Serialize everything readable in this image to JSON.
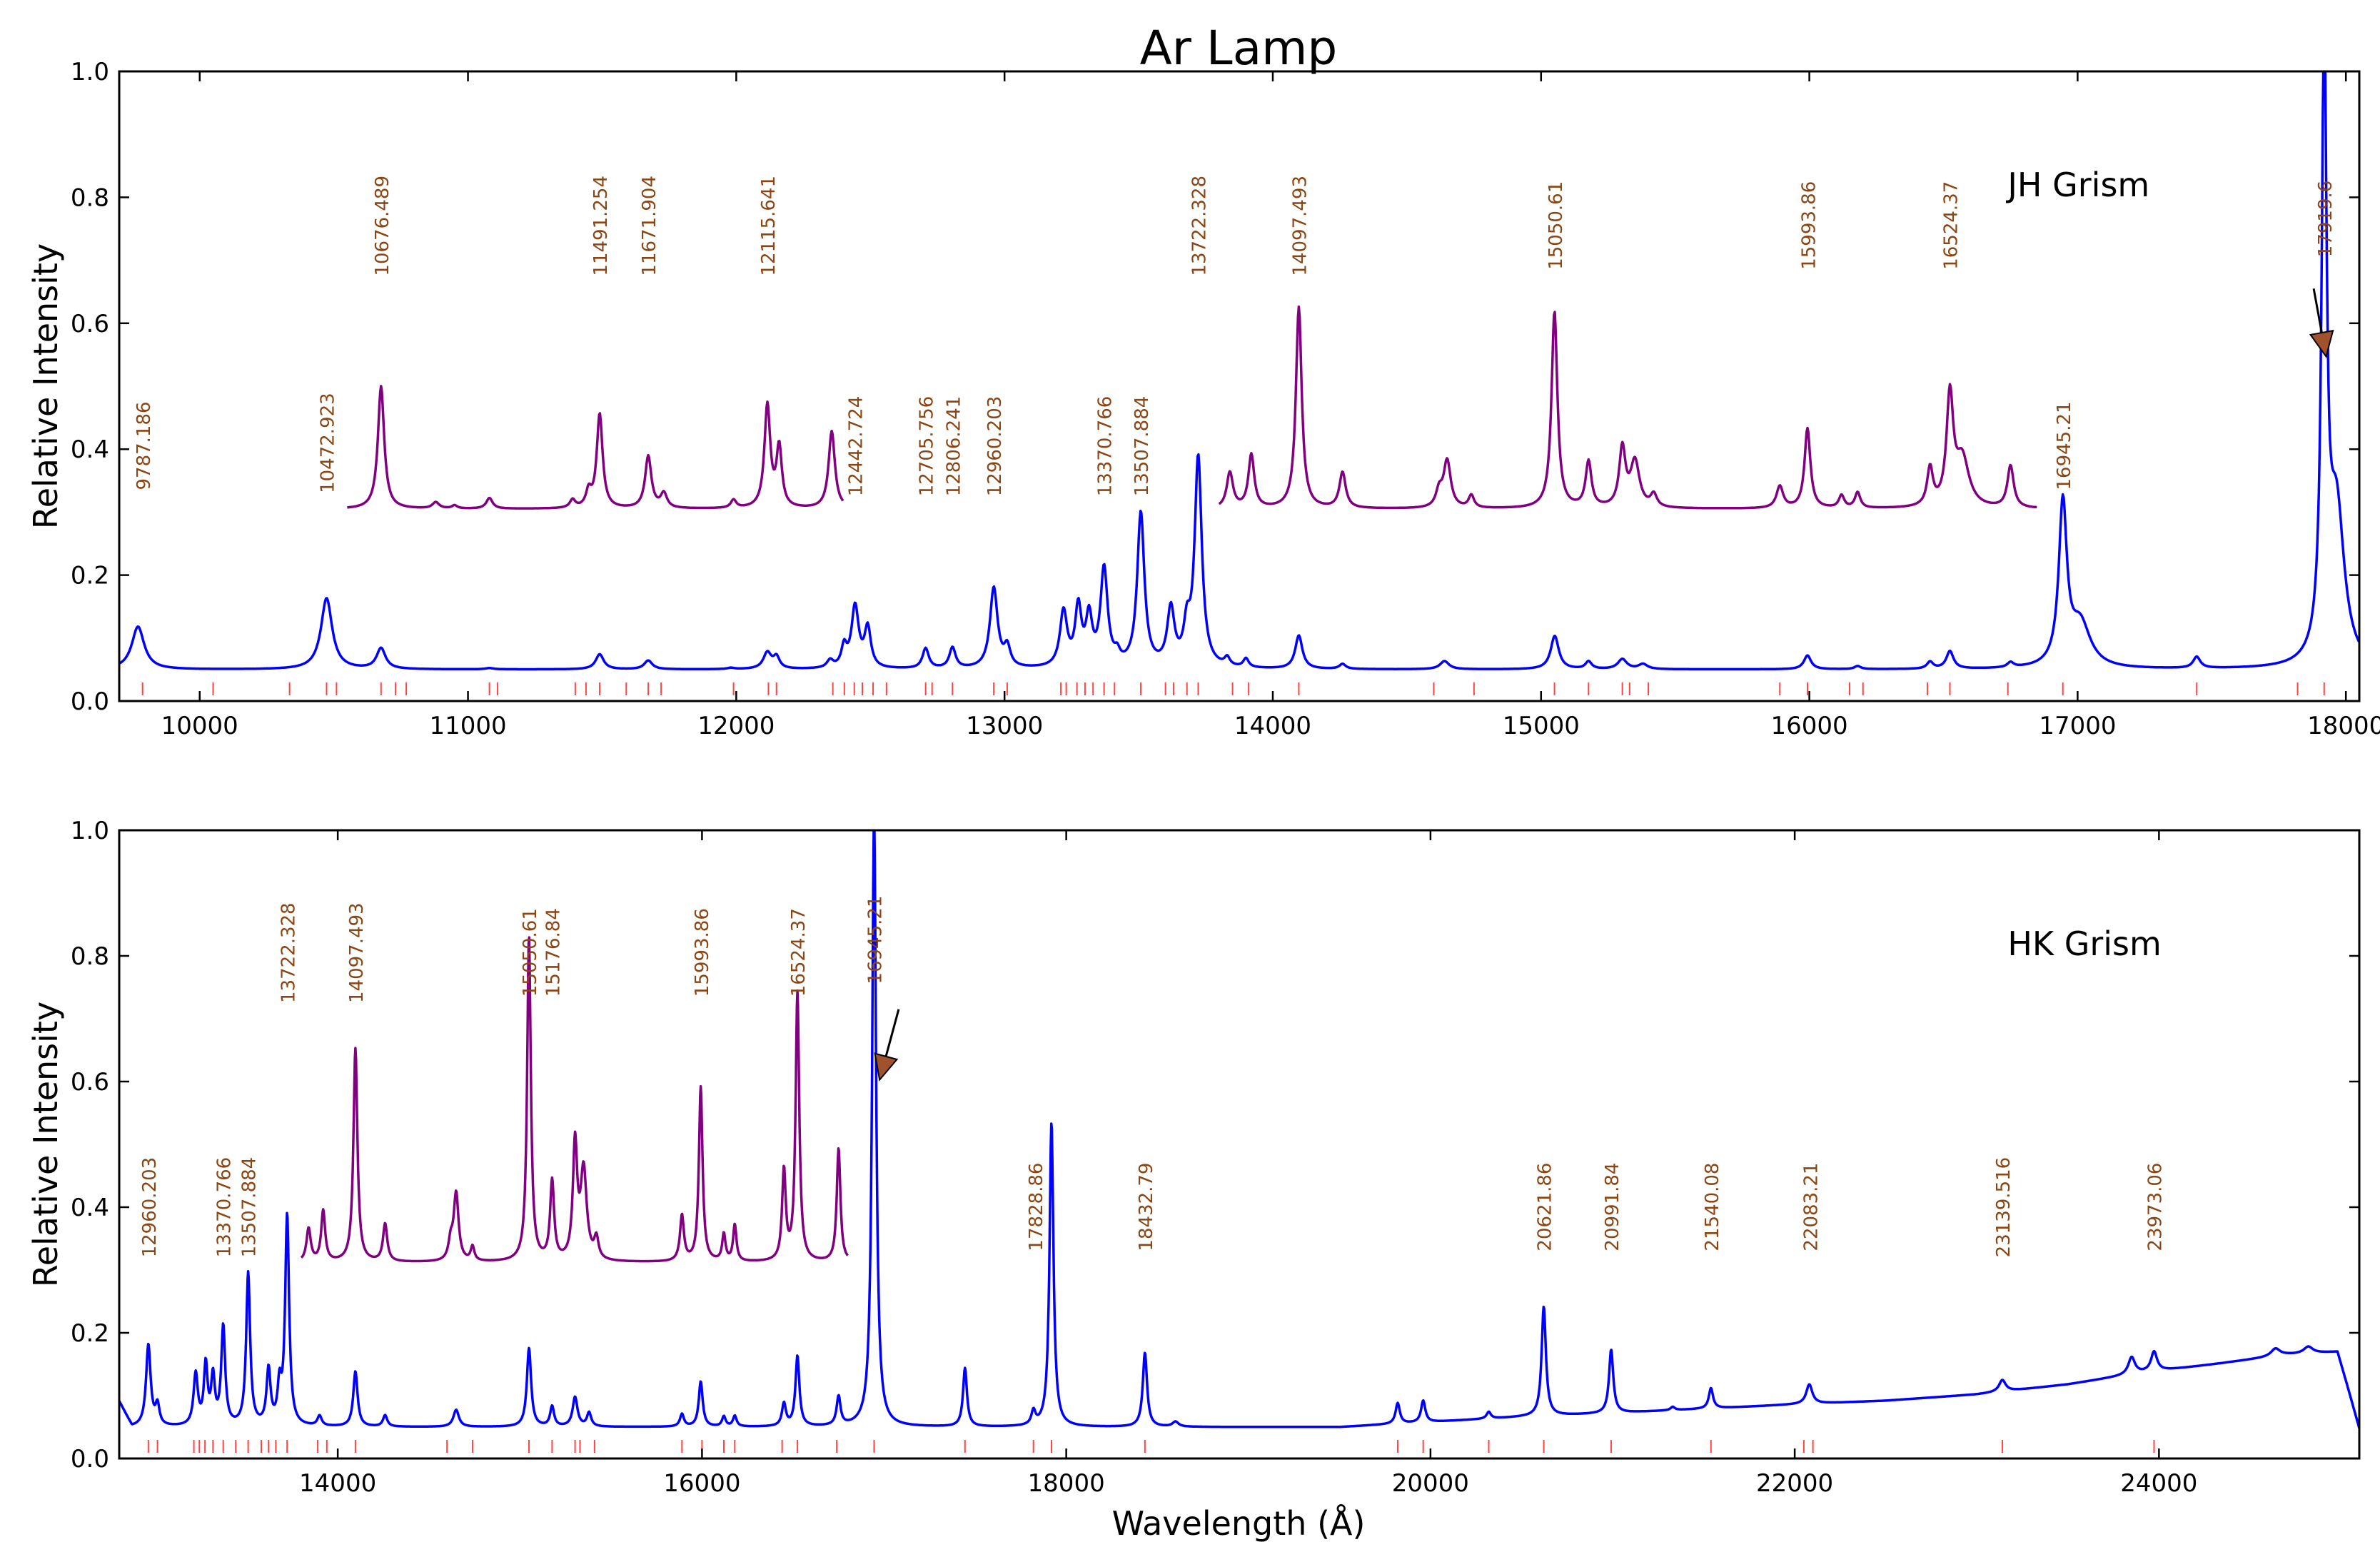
{
  "figure": {
    "title": "Ar Lamp",
    "xlabel": "Wavelength (Å)",
    "ylabel": "Relative Intensity"
  },
  "colors": {
    "main": "#0000ff",
    "inset": "#800080",
    "label": "#8b4513",
    "tick": "#ff4444",
    "arrow": "#a0522d",
    "axis": "#000000"
  },
  "chart_data": [
    {
      "type": "line",
      "name": "JH Grism",
      "xlim": [
        9700,
        18050
      ],
      "ylim": [
        0,
        1.0
      ],
      "xticks": [
        10000,
        11000,
        12000,
        13000,
        14000,
        15000,
        16000,
        17000,
        18000
      ],
      "yticks": [
        0.0,
        0.2,
        0.4,
        0.6,
        0.8,
        1.0
      ],
      "baseline": 0.05,
      "main_peaks": [
        [
          9770,
          0.118,
          28
        ],
        [
          10473,
          0.163,
          25
        ],
        [
          10676,
          0.083,
          20
        ],
        [
          11080,
          0.052,
          18
        ],
        [
          11491,
          0.074,
          18
        ],
        [
          11672,
          0.064,
          18
        ],
        [
          11980,
          0.052,
          15
        ],
        [
          12116,
          0.076,
          18
        ],
        [
          12150,
          0.068,
          14
        ],
        [
          12350,
          0.062,
          14
        ],
        [
          12402,
          0.082,
          12
        ],
        [
          12443,
          0.148,
          16
        ],
        [
          12490,
          0.113,
          14
        ],
        [
          12706,
          0.082,
          14
        ],
        [
          12806,
          0.083,
          14
        ],
        [
          12960,
          0.178,
          17
        ],
        [
          13010,
          0.081,
          14
        ],
        [
          13220,
          0.138,
          16
        ],
        [
          13275,
          0.142,
          14
        ],
        [
          13315,
          0.125,
          14
        ],
        [
          13371,
          0.205,
          16
        ],
        [
          13420,
          0.065,
          12
        ],
        [
          13508,
          0.295,
          16
        ],
        [
          13620,
          0.14,
          16
        ],
        [
          13680,
          0.105,
          14
        ],
        [
          13722,
          0.383,
          16
        ],
        [
          13830,
          0.063,
          12
        ],
        [
          13900,
          0.064,
          12
        ],
        [
          14097,
          0.103,
          16
        ],
        [
          14260,
          0.058,
          14
        ],
        [
          14640,
          0.063,
          20
        ],
        [
          15051,
          0.103,
          18
        ],
        [
          15177,
          0.062,
          14
        ],
        [
          15303,
          0.066,
          20
        ],
        [
          15380,
          0.058,
          20
        ],
        [
          15993,
          0.072,
          16
        ],
        [
          16180,
          0.055,
          14
        ],
        [
          16450,
          0.061,
          14
        ],
        [
          16524,
          0.078,
          16
        ],
        [
          16750,
          0.058,
          14
        ],
        [
          16945,
          0.305,
          18
        ],
        [
          17010,
          0.12,
          45
        ],
        [
          17444,
          0.068,
          16
        ],
        [
          17919,
          1.02,
          11
        ],
        [
          17965,
          0.3,
          35
        ]
      ],
      "inset": {
        "segments": [
          [
            10550,
            12400
          ],
          [
            13800,
            16850
          ]
        ],
        "baseline": 0.305,
        "peaks": [
          [
            10676,
            0.5,
            14
          ],
          [
            10880,
            0.315,
            15
          ],
          [
            10950,
            0.31,
            12
          ],
          [
            11080,
            0.322,
            14
          ],
          [
            11390,
            0.318,
            12
          ],
          [
            11450,
            0.33,
            12
          ],
          [
            11491,
            0.455,
            13
          ],
          [
            11672,
            0.388,
            14
          ],
          [
            11730,
            0.328,
            14
          ],
          [
            11990,
            0.318,
            12
          ],
          [
            12116,
            0.468,
            13
          ],
          [
            12160,
            0.4,
            12
          ],
          [
            12356,
            0.428,
            14
          ],
          [
            13840,
            0.362,
            14
          ],
          [
            13920,
            0.39,
            13
          ],
          [
            14097,
            0.625,
            13
          ],
          [
            14260,
            0.362,
            14
          ],
          [
            14620,
            0.33,
            14
          ],
          [
            14650,
            0.38,
            16
          ],
          [
            14740,
            0.325,
            12
          ],
          [
            15050,
            0.618,
            13
          ],
          [
            15177,
            0.378,
            13
          ],
          [
            15303,
            0.398,
            14
          ],
          [
            15350,
            0.378,
            20
          ],
          [
            15420,
            0.325,
            14
          ],
          [
            15890,
            0.34,
            15
          ],
          [
            15993,
            0.432,
            13
          ],
          [
            16120,
            0.325,
            12
          ],
          [
            16180,
            0.33,
            12
          ],
          [
            16450,
            0.365,
            13
          ],
          [
            16524,
            0.478,
            15
          ],
          [
            16570,
            0.382,
            30
          ],
          [
            16750,
            0.372,
            14
          ]
        ]
      },
      "line_ticks": [
        9787,
        10050,
        10335,
        10473,
        10510,
        10676,
        10730,
        10770,
        11080,
        11110,
        11400,
        11440,
        11491,
        11590,
        11672,
        11720,
        11990,
        12120,
        12150,
        12360,
        12403,
        12440,
        12470,
        12510,
        12560,
        12706,
        12730,
        12806,
        12960,
        13010,
        13210,
        13230,
        13270,
        13300,
        13330,
        13371,
        13410,
        13508,
        13600,
        13630,
        13680,
        13722,
        13850,
        13910,
        14097,
        14600,
        14750,
        15050,
        15177,
        15303,
        15330,
        15400,
        15890,
        15993,
        16150,
        16200,
        16440,
        16524,
        16740,
        16945,
        17444,
        17820,
        17919
      ],
      "annotations": [
        {
          "x": 9787.186,
          "y": 0.335,
          "text": "9787.186"
        },
        {
          "x": 10472.923,
          "y": 0.33,
          "text": "10472.923"
        },
        {
          "x": 10676.489,
          "y": 0.675,
          "text": "10676.489"
        },
        {
          "x": 11491.254,
          "y": 0.675,
          "text": "11491.254"
        },
        {
          "x": 11671.904,
          "y": 0.675,
          "text": "11671.904"
        },
        {
          "x": 12115.641,
          "y": 0.675,
          "text": "12115.641"
        },
        {
          "x": 12442.724,
          "y": 0.325,
          "text": "12442.724"
        },
        {
          "x": 12705.756,
          "y": 0.325,
          "text": "12705.756"
        },
        {
          "x": 12806.241,
          "y": 0.325,
          "text": "12806.241"
        },
        {
          "x": 12960.203,
          "y": 0.325,
          "text": "12960.203"
        },
        {
          "x": 13370.766,
          "y": 0.325,
          "text": "13370.766"
        },
        {
          "x": 13507.884,
          "y": 0.325,
          "text": "13507.884"
        },
        {
          "x": 13722.328,
          "y": 0.675,
          "text": "13722.328"
        },
        {
          "x": 14097.493,
          "y": 0.675,
          "text": "14097.493"
        },
        {
          "x": 15050.61,
          "y": 0.685,
          "text": "15050.61"
        },
        {
          "x": 15993.86,
          "y": 0.685,
          "text": "15993.86"
        },
        {
          "x": 16524.37,
          "y": 0.685,
          "text": "16524.37"
        },
        {
          "x": 16945.21,
          "y": 0.335,
          "text": "16945.21"
        },
        {
          "x": 17919.6,
          "y": 0.705,
          "text": "17919.6"
        }
      ],
      "panel_label": "JH Grism",
      "arrow": {
        "x1": 17880,
        "y1": 0.655,
        "x2": 17910,
        "y2": 0.585
      }
    },
    {
      "type": "line",
      "name": "HK Grism",
      "xlim": [
        12800,
        25100
      ],
      "ylim": [
        0,
        1.0
      ],
      "xticks": [
        14000,
        16000,
        18000,
        20000,
        22000,
        24000
      ],
      "yticks": [
        0.0,
        0.2,
        0.4,
        0.6,
        0.8,
        1.0
      ],
      "baseline_points": [
        [
          12800,
          0.09
        ],
        [
          12870,
          0.05
        ],
        [
          19500,
          0.05
        ],
        [
          20000,
          0.058
        ],
        [
          20500,
          0.066
        ],
        [
          21000,
          0.072
        ],
        [
          21500,
          0.079
        ],
        [
          22000,
          0.086
        ],
        [
          22500,
          0.092
        ],
        [
          23000,
          0.102
        ],
        [
          23500,
          0.118
        ],
        [
          23900,
          0.136
        ],
        [
          24300,
          0.15
        ],
        [
          24700,
          0.165
        ],
        [
          24980,
          0.17
        ],
        [
          25030,
          0.12
        ],
        [
          25100,
          0.048
        ]
      ],
      "main_peaks": [
        [
          12960,
          0.18,
          15
        ],
        [
          13010,
          0.082,
          13
        ],
        [
          13220,
          0.132,
          14
        ],
        [
          13275,
          0.145,
          12
        ],
        [
          13315,
          0.125,
          12
        ],
        [
          13371,
          0.207,
          13
        ],
        [
          13508,
          0.293,
          13
        ],
        [
          13620,
          0.138,
          13
        ],
        [
          13680,
          0.108,
          12
        ],
        [
          13722,
          0.385,
          13
        ],
        [
          13900,
          0.066,
          14
        ],
        [
          14097,
          0.138,
          14
        ],
        [
          14260,
          0.068,
          14
        ],
        [
          14650,
          0.077,
          18
        ],
        [
          15050,
          0.175,
          14
        ],
        [
          15177,
          0.082,
          13
        ],
        [
          15303,
          0.097,
          16
        ],
        [
          15380,
          0.072,
          14
        ],
        [
          15890,
          0.07,
          13
        ],
        [
          15993,
          0.122,
          13
        ],
        [
          16120,
          0.066,
          12
        ],
        [
          16180,
          0.067,
          12
        ],
        [
          16450,
          0.086,
          13
        ],
        [
          16524,
          0.162,
          13
        ],
        [
          16750,
          0.096,
          13
        ],
        [
          16945,
          1.03,
          13
        ],
        [
          17444,
          0.143,
          13
        ],
        [
          17820,
          0.072,
          13
        ],
        [
          17919,
          0.535,
          13
        ],
        [
          18432,
          0.168,
          14
        ],
        [
          18600,
          0.058,
          20
        ],
        [
          19820,
          0.088,
          14
        ],
        [
          19960,
          0.092,
          14
        ],
        [
          20320,
          0.074,
          14
        ],
        [
          20622,
          0.242,
          14
        ],
        [
          20992,
          0.173,
          14
        ],
        [
          21330,
          0.082,
          14
        ],
        [
          21540,
          0.112,
          14
        ],
        [
          22080,
          0.118,
          20
        ],
        [
          23140,
          0.125,
          22
        ],
        [
          23850,
          0.161,
          22
        ],
        [
          23973,
          0.17,
          20
        ],
        [
          24640,
          0.175,
          30
        ],
        [
          24820,
          0.178,
          30
        ]
      ],
      "inset": {
        "segments": [
          [
            13800,
            16800
          ]
        ],
        "baseline": 0.312,
        "peaks": [
          [
            13840,
            0.365,
            14
          ],
          [
            13920,
            0.393,
            13
          ],
          [
            14097,
            0.652,
            13
          ],
          [
            14260,
            0.372,
            14
          ],
          [
            14620,
            0.34,
            14
          ],
          [
            14650,
            0.42,
            16
          ],
          [
            14740,
            0.335,
            12
          ],
          [
            15050,
            0.83,
            12
          ],
          [
            15177,
            0.438,
            13
          ],
          [
            15303,
            0.495,
            14
          ],
          [
            15350,
            0.455,
            20
          ],
          [
            15420,
            0.345,
            14
          ],
          [
            15890,
            0.385,
            13
          ],
          [
            15993,
            0.59,
            12
          ],
          [
            16120,
            0.355,
            11
          ],
          [
            16180,
            0.37,
            11
          ],
          [
            16450,
            0.455,
            12
          ],
          [
            16524,
            0.74,
            12
          ],
          [
            16750,
            0.493,
            12
          ]
        ]
      },
      "line_ticks": [
        12960,
        13010,
        13210,
        13240,
        13271,
        13315,
        13371,
        13440,
        13508,
        13580,
        13620,
        13660,
        13722,
        13890,
        13940,
        14097,
        14600,
        14740,
        15050,
        15177,
        15303,
        15330,
        15410,
        15890,
        16000,
        16120,
        16180,
        16440,
        16524,
        16740,
        16945,
        17444,
        17820,
        17919,
        18432,
        19820,
        19960,
        20320,
        20622,
        20992,
        21540,
        22050,
        22100,
        23140,
        23973
      ],
      "annotations": [
        {
          "x": 12960.203,
          "y": 0.32,
          "text": "12960.203"
        },
        {
          "x": 13370.766,
          "y": 0.32,
          "text": "13370.766"
        },
        {
          "x": 13507.884,
          "y": 0.32,
          "text": "13507.884"
        },
        {
          "x": 13722.328,
          "y": 0.725,
          "text": "13722.328"
        },
        {
          "x": 14097.493,
          "y": 0.725,
          "text": "14097.493"
        },
        {
          "x": 15050.61,
          "y": 0.735,
          "text": "15050.61"
        },
        {
          "x": 15176.84,
          "y": 0.735,
          "text": "15176.84"
        },
        {
          "x": 15993.86,
          "y": 0.735,
          "text": "15993.86"
        },
        {
          "x": 16524.37,
          "y": 0.735,
          "text": "16524.37"
        },
        {
          "x": 16945.21,
          "y": 0.755,
          "text": "16945.21"
        },
        {
          "x": 17828.86,
          "y": 0.33,
          "text": "17828.86"
        },
        {
          "x": 18432.79,
          "y": 0.33,
          "text": "18432.79"
        },
        {
          "x": 20621.86,
          "y": 0.33,
          "text": "20621.86"
        },
        {
          "x": 20991.84,
          "y": 0.33,
          "text": "20991.84"
        },
        {
          "x": 21540.08,
          "y": 0.33,
          "text": "21540.08"
        },
        {
          "x": 22083.21,
          "y": 0.33,
          "text": "22083.21"
        },
        {
          "x": 23139.516,
          "y": 0.32,
          "text": "23139.516"
        },
        {
          "x": 23973.06,
          "y": 0.33,
          "text": "23973.06"
        }
      ],
      "panel_label": "HK Grism",
      "arrow": {
        "x1": 17080,
        "y1": 0.715,
        "x2": 17010,
        "y2": 0.64
      }
    }
  ]
}
